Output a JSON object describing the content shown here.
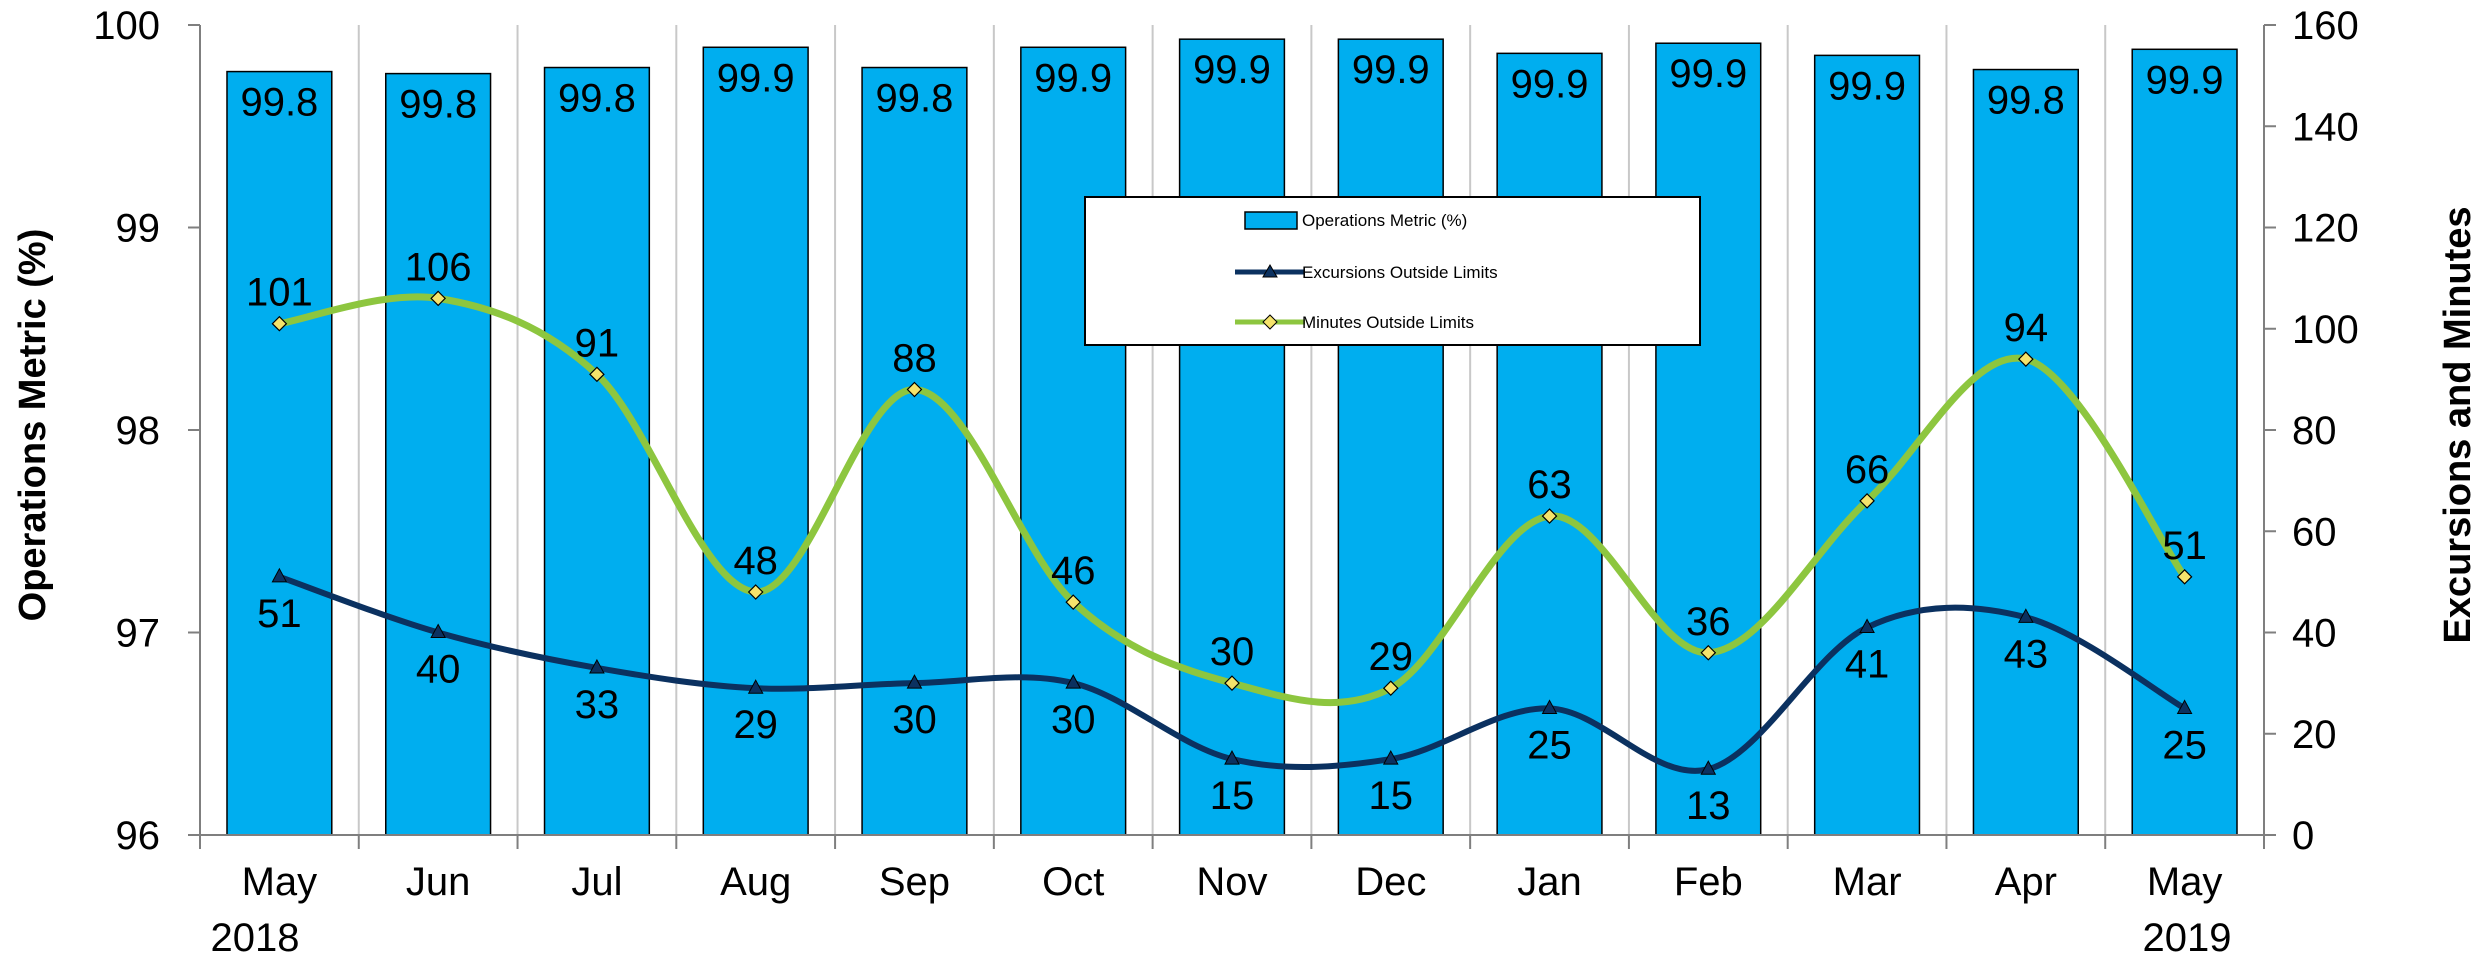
{
  "chart_data": {
    "type": "bar",
    "categories": [
      "May",
      "Jun",
      "Jul",
      "Aug",
      "Sep",
      "Oct",
      "Nov",
      "Dec",
      "Jan",
      "Feb",
      "Mar",
      "Apr",
      "May"
    ],
    "year_labels": {
      "first": "2018",
      "last": "2019"
    },
    "ylabel": "Operations Metric (%)",
    "y2label": "Excursions and Minutes",
    "ylim": [
      96,
      100
    ],
    "y2lim": [
      0,
      160
    ],
    "yticks": [
      96,
      97,
      98,
      99,
      100
    ],
    "y2ticks": [
      0,
      20,
      40,
      60,
      80,
      100,
      120,
      140,
      160
    ],
    "grid": "vertical lines between categories",
    "legend_position": "top-center",
    "series": [
      {
        "name": "Operations Metric (%)",
        "type": "bar",
        "axis": "left",
        "color": "#00AEEF",
        "values": [
          99.77,
          99.76,
          99.79,
          99.89,
          99.79,
          99.89,
          99.93,
          99.93,
          99.86,
          99.91,
          99.85,
          99.78,
          99.88
        ],
        "labels": [
          "99.8",
          "99.8",
          "99.8",
          "99.9",
          "99.8",
          "99.9",
          "99.9",
          "99.9",
          "99.9",
          "99.9",
          "99.9",
          "99.8",
          "99.9"
        ]
      },
      {
        "name": "Excursions Outside Limits",
        "type": "line",
        "axis": "right",
        "color": "#0B3160",
        "marker": "triangle",
        "values": [
          51,
          40,
          33,
          29,
          30,
          30,
          15,
          15,
          25,
          13,
          41,
          43,
          25
        ]
      },
      {
        "name": "Minutes Outside Limits",
        "type": "line",
        "axis": "right",
        "color": "#8DC63F",
        "marker": "diamond",
        "values": [
          101,
          106,
          91,
          48,
          88,
          46,
          30,
          29,
          63,
          36,
          66,
          94,
          51
        ]
      }
    ]
  }
}
